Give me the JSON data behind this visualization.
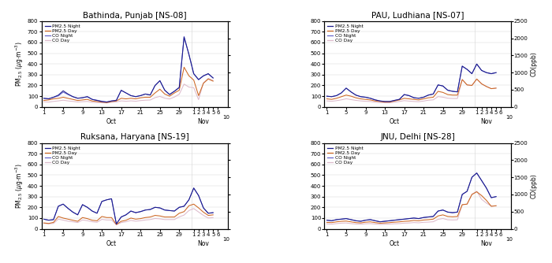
{
  "sites": [
    {
      "title": "Bathinda, Punjab [NS-08]",
      "key": "bathinda"
    },
    {
      "title": "PAU, Ludhiana [NS-07]",
      "key": "ludhiana"
    },
    {
      "title": "Ruksana, Haryana [NS-19]",
      "key": "ruksana"
    },
    {
      "title": "JNU, Delhi [NS-28]",
      "key": "jnu"
    }
  ],
  "colors": {
    "pm25_night": "#1a1a8c",
    "pm25_day": "#cc6622",
    "co_night": "#6666cc",
    "co_day": "#ddbbcc"
  },
  "legend_labels": [
    "PM2.5 Night",
    "PM2.5 Day",
    "CO Night",
    "CO Day"
  ],
  "ylim_left": [
    0,
    800
  ],
  "ylim_right": [
    0,
    2500
  ],
  "bathinda": {
    "pm25_night": [
      80,
      75,
      90,
      110,
      150,
      120,
      95,
      80,
      85,
      95,
      70,
      60,
      50,
      45,
      55,
      60,
      155,
      130,
      105,
      95,
      105,
      120,
      110,
      200,
      245,
      155,
      115,
      145,
      180,
      650,
      490,
      310,
      255,
      290,
      310,
      270
    ],
    "pm25_day": [
      60,
      65,
      75,
      80,
      90,
      80,
      70,
      60,
      65,
      70,
      55,
      50,
      45,
      40,
      50,
      55,
      80,
      75,
      80,
      75,
      85,
      90,
      90,
      130,
      165,
      120,
      100,
      130,
      155,
      370,
      290,
      250,
      105,
      220,
      260,
      240
    ],
    "co_night": [
      250,
      240,
      280,
      320,
      430,
      360,
      300,
      255,
      270,
      300,
      220,
      195,
      165,
      145,
      175,
      195,
      480,
      405,
      330,
      300,
      330,
      375,
      350,
      620,
      760,
      490,
      365,
      460,
      570,
      2050,
      1530,
      960,
      790,
      900,
      960,
      840
    ],
    "co_day": [
      150,
      140,
      160,
      175,
      195,
      175,
      160,
      145,
      152,
      160,
      135,
      128,
      120,
      115,
      135,
      145,
      175,
      165,
      175,
      165,
      185,
      195,
      200,
      270,
      305,
      255,
      230,
      287,
      368,
      665,
      577,
      560,
      210,
      700,
      832,
      770
    ]
  },
  "ludhiana": {
    "pm25_night": [
      100,
      95,
      105,
      130,
      175,
      140,
      110,
      95,
      90,
      80,
      65,
      55,
      50,
      50,
      60,
      70,
      115,
      105,
      85,
      80,
      90,
      110,
      120,
      205,
      195,
      155,
      145,
      140,
      380,
      350,
      310,
      400,
      340,
      320,
      310,
      320
    ],
    "pm25_day": [
      75,
      70,
      80,
      95,
      110,
      100,
      85,
      75,
      70,
      65,
      55,
      50,
      45,
      45,
      55,
      65,
      80,
      75,
      70,
      65,
      75,
      85,
      90,
      145,
      135,
      115,
      110,
      110,
      255,
      205,
      200,
      260,
      215,
      190,
      170,
      175
    ],
    "co_night": [
      310,
      300,
      330,
      405,
      545,
      435,
      345,
      300,
      283,
      253,
      206,
      175,
      158,
      158,
      192,
      222,
      360,
      330,
      270,
      253,
      283,
      345,
      375,
      638,
      608,
      485,
      455,
      438,
      1185,
      1090,
      965,
      1245,
      1060,
      995,
      965,
      995
    ],
    "co_day": [
      175,
      163,
      182,
      205,
      237,
      213,
      190,
      175,
      163,
      158,
      138,
      128,
      120,
      120,
      138,
      158,
      182,
      170,
      158,
      152,
      170,
      195,
      205,
      300,
      283,
      253,
      245,
      245,
      797,
      638,
      625,
      810,
      672,
      595,
      532,
      547
    ]
  },
  "ruksana": {
    "pm25_night": [
      90,
      80,
      85,
      210,
      230,
      190,
      155,
      130,
      225,
      200,
      165,
      145,
      255,
      270,
      280,
      45,
      110,
      130,
      165,
      150,
      160,
      175,
      180,
      200,
      195,
      175,
      170,
      165,
      200,
      210,
      270,
      380,
      310,
      195,
      145,
      150
    ],
    "pm25_day": [
      55,
      50,
      60,
      115,
      100,
      90,
      80,
      70,
      105,
      95,
      80,
      75,
      115,
      105,
      105,
      40,
      70,
      80,
      100,
      90,
      95,
      105,
      110,
      125,
      120,
      110,
      110,
      110,
      145,
      160,
      215,
      230,
      195,
      155,
      125,
      130
    ],
    "co_night": [
      280,
      253,
      270,
      660,
      720,
      600,
      490,
      410,
      705,
      628,
      520,
      455,
      798,
      845,
      875,
      145,
      348,
      410,
      520,
      473,
      503,
      547,
      563,
      628,
      608,
      547,
      532,
      520,
      628,
      660,
      845,
      1185,
      970,
      610,
      455,
      473
    ],
    "co_day": [
      158,
      145,
      158,
      283,
      253,
      222,
      205,
      182,
      258,
      237,
      206,
      190,
      276,
      258,
      258,
      115,
      182,
      205,
      245,
      222,
      237,
      258,
      270,
      300,
      290,
      270,
      270,
      270,
      348,
      400,
      532,
      590,
      490,
      392,
      315,
      325
    ]
  },
  "jnu": {
    "pm25_night": [
      80,
      75,
      85,
      90,
      95,
      85,
      75,
      70,
      80,
      85,
      75,
      65,
      70,
      75,
      80,
      85,
      90,
      95,
      100,
      95,
      105,
      110,
      115,
      165,
      175,
      155,
      150,
      155,
      320,
      350,
      480,
      520,
      450,
      380,
      290,
      300
    ],
    "pm25_day": [
      60,
      58,
      65,
      70,
      72,
      65,
      58,
      55,
      62,
      65,
      58,
      52,
      55,
      58,
      62,
      65,
      70,
      72,
      78,
      75,
      82,
      85,
      90,
      120,
      130,
      115,
      112,
      115,
      225,
      230,
      320,
      345,
      310,
      265,
      210,
      215
    ],
    "co_night": [
      253,
      237,
      270,
      283,
      300,
      270,
      237,
      222,
      253,
      270,
      237,
      206,
      222,
      237,
      253,
      270,
      283,
      300,
      315,
      300,
      330,
      348,
      360,
      520,
      547,
      490,
      473,
      490,
      1005,
      1090,
      1500,
      1625,
      1408,
      1185,
      908,
      938
    ],
    "co_day": [
      145,
      135,
      152,
      165,
      170,
      152,
      140,
      135,
      147,
      152,
      140,
      128,
      135,
      140,
      147,
      152,
      165,
      170,
      182,
      175,
      190,
      195,
      205,
      276,
      300,
      263,
      258,
      263,
      703,
      720,
      1005,
      1095,
      860,
      750,
      660,
      672
    ]
  }
}
